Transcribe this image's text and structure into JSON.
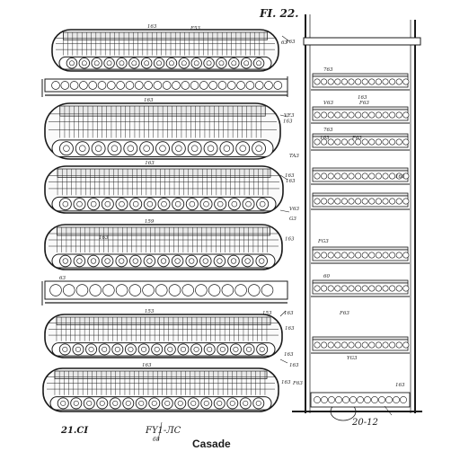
{
  "figure": {
    "title": "FI. 22.",
    "number": "21.CI",
    "code": "FY1-ЛC",
    "sub_code": "68",
    "caption": "Casade",
    "frame_label": "20-12"
  },
  "colors": {
    "ink": "#1a1a1a",
    "paper": "#ffffff",
    "shade": "#e9e9e9"
  },
  "hulls": [
    {
      "tags": [
        "163",
        "63"
      ]
    },
    {
      "tags": [
        "163",
        "163"
      ]
    },
    {
      "tags": [
        "163",
        "163"
      ]
    },
    {
      "tags": [
        "159",
        "163"
      ]
    },
    {
      "tags": [
        "153",
        "163"
      ]
    },
    {
      "tags": [
        "163",
        "163"
      ]
    }
  ],
  "rails": [
    {
      "tags": []
    },
    {
      "tags": [
        "63"
      ]
    }
  ],
  "shelves": [
    {
      "tags": [
        "763"
      ]
    },
    {
      "tags": [
        "V63",
        "F63"
      ]
    },
    {
      "tags": [
        "763"
      ]
    },
    {
      "tags": []
    },
    {
      "tags": []
    },
    {
      "tags": []
    },
    {
      "tags": [
        "60"
      ]
    },
    {
      "tags": []
    }
  ],
  "callouts": [
    "F53",
    "163",
    "VE3",
    "TA3",
    "163",
    "V63",
    "G3",
    "FG3",
    "163",
    "F63",
    "163",
    "163",
    "163",
    "163",
    "F63",
    "163",
    "163",
    "F63",
    "163",
    "YG3",
    "153"
  ]
}
